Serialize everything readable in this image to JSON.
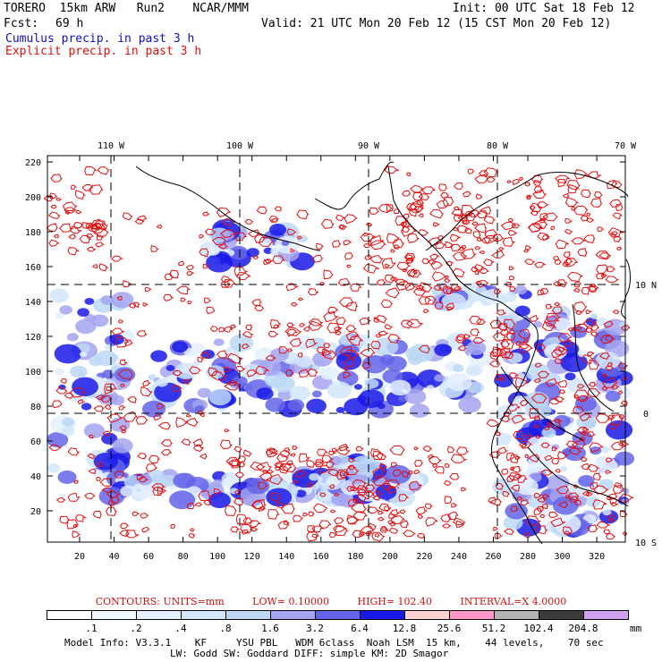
{
  "header": {
    "model_id": "TORERO  15km ARW   Run2    NCAR/MMM",
    "init": "Init: 00 UTC Sat 18 Feb 12",
    "fcst_label": "Fcst:",
    "fcst_value": "69 h",
    "valid": "Valid: 21 UTC Mon 20 Feb 12 (15 CST Mon 20 Feb 12)",
    "field1": "Cumulus precip. in past 3 h",
    "field2": "Explicit precip. in past 3 h"
  },
  "map": {
    "top_lon_labels": [
      "110 W",
      "100 W",
      "90 W",
      "80 W",
      "70 W"
    ],
    "y_ticks": [
      "220",
      "200",
      "180",
      "160",
      "140",
      "120",
      "100",
      "80",
      "60",
      "40",
      "20"
    ],
    "x_ticks": [
      "20",
      "40",
      "60",
      "80",
      "100",
      "120",
      "140",
      "160",
      "180",
      "200",
      "220",
      "240",
      "260",
      "280",
      "300",
      "320"
    ],
    "right_lat_labels": [
      "10 N",
      "0",
      "10 S"
    ],
    "colors": {
      "coast": "#000000",
      "explicit": "#e01010",
      "grid": "#000000"
    }
  },
  "contours": {
    "units": "CONTOURS:  UNITS=mm",
    "low": "LOW=  0.10000",
    "high": "HIGH=   102.40",
    "interval": "INTERVAL=X  4.0000"
  },
  "colorbar": {
    "unit": "mm",
    "labels": [
      ".1",
      ".2",
      ".4",
      ".8",
      "1.6",
      "3.2",
      "6.4",
      "12.8",
      "25.6",
      "51.2",
      "102.4",
      "204.8"
    ],
    "colors": [
      "#ffffff",
      "#f2f8ff",
      "#e4f0ff",
      "#d2e8fa",
      "#bcd8f4",
      "#a4a4f0",
      "#6464e8",
      "#1a1ae8",
      "#ffd2d2",
      "#ff96c8",
      "#b4b4b4",
      "#3c3c3c",
      "#d2a0f0"
    ]
  },
  "footer": {
    "line1": "Model Info: V3.3.1    KF     YSU PBL   WDM 6class  Noah LSM  15 km,    44 levels,    70 sec",
    "line2": "LW: Godd SW: Goddard DIFF: simple KM: 2D Smagor"
  }
}
